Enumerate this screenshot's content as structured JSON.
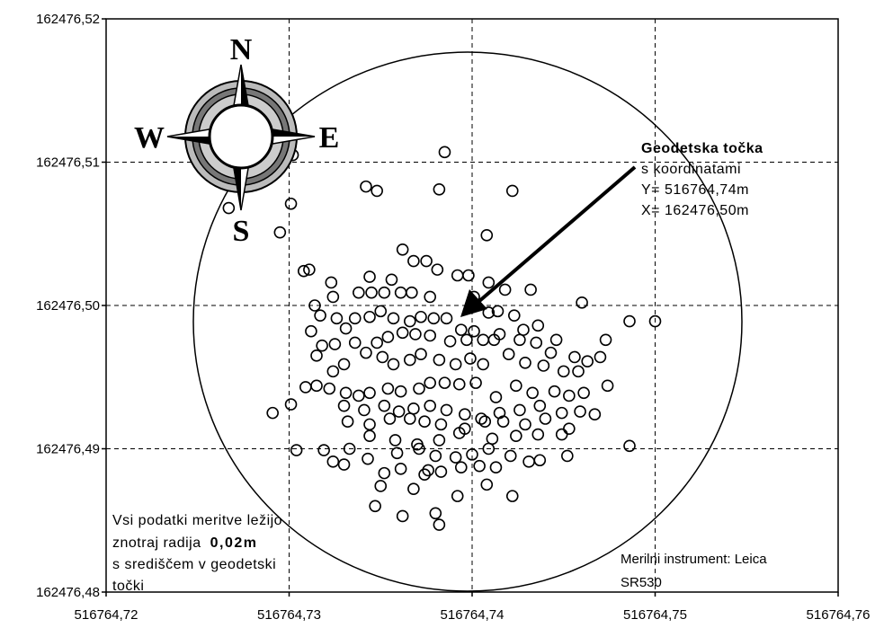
{
  "chart_data": {
    "type": "scatter",
    "x": [
      516764.7385,
      516764.7382,
      516764.7342,
      516764.7348,
      516764.7422,
      516764.7302,
      516764.7267,
      516764.7301,
      516764.7295,
      516764.7408,
      516764.7362,
      516764.7368,
      516764.7375,
      516764.7381,
      516764.7392,
      516764.7398,
      516764.7308,
      516764.7311,
      516764.7344,
      516764.7356,
      516764.7323,
      516764.7418,
      516764.7432,
      516764.7409,
      516764.7338,
      516764.7345,
      516764.7352,
      516764.7361,
      516764.7367,
      516764.7377,
      516764.7324,
      516764.7314,
      516764.7317,
      516764.7326,
      516764.7336,
      516764.7344,
      516764.735,
      516764.7401,
      516764.7409,
      516764.7414,
      516764.7423,
      516764.746,
      516764.7486,
      516764.7473,
      516764.7312,
      516764.7331,
      516764.7357,
      516764.7366,
      516764.7372,
      516764.7379,
      516764.7386,
      516764.7394,
      516764.7401,
      516764.7415,
      516764.7428,
      516764.7436,
      516764.7446,
      516764.7443,
      516764.7456,
      516764.747,
      516764.7318,
      516764.7325,
      516764.7336,
      516764.7348,
      516764.7354,
      516764.7362,
      516764.7369,
      516764.7377,
      516764.7388,
      516764.7397,
      516764.7406,
      516764.7412,
      516764.7426,
      516764.7435,
      516764.7315,
      516764.7324,
      516764.733,
      516764.7342,
      516764.7351,
      516764.7357,
      516764.7366,
      516764.7372,
      516764.7382,
      516764.7391,
      516764.7399,
      516764.7406,
      516764.742,
      516764.7429,
      516764.7439,
      516764.745,
      516764.7458,
      516764.7463,
      516764.7474,
      516764.7309,
      516764.7315,
      516764.7322,
      516764.7331,
      516764.7338,
      516764.7344,
      516764.7354,
      516764.7361,
      516764.7371,
      516764.7377,
      516764.7385,
      516764.7393,
      516764.7402,
      516764.7413,
      516764.7424,
      516764.7433,
      516764.7445,
      516764.7453,
      516764.7461,
      516764.7291,
      516764.7301,
      516764.733,
      516764.7341,
      516764.7352,
      516764.736,
      516764.7368,
      516764.7377,
      516764.7386,
      516764.7396,
      516764.7405,
      516764.7415,
      516764.7426,
      516764.7437,
      516764.7449,
      516764.7459,
      516764.7467,
      516764.7332,
      516764.7344,
      516764.7355,
      516764.7366,
      516764.7374,
      516764.7383,
      516764.7396,
      516764.7407,
      516764.7417,
      516764.7429,
      516764.744,
      516764.7453,
      516764.7333,
      516764.7344,
      516764.7358,
      516764.737,
      516764.7382,
      516764.7393,
      516764.7411,
      516764.7424,
      516764.7436,
      516764.7449,
      516764.7304,
      516764.7319,
      516764.7324,
      516764.733,
      516764.7343,
      516764.7359,
      516764.7371,
      516764.738,
      516764.7391,
      516764.74,
      516764.7409,
      516764.7421,
      516764.7431,
      516764.7437,
      516764.7452,
      516764.7486,
      516764.7352,
      516764.7361,
      516764.7376,
      516764.7383,
      516764.7394,
      516764.7404,
      516764.7413,
      516764.735,
      516764.7368,
      516764.7374,
      516764.7392,
      516764.7408,
      516764.7422,
      516764.7347,
      516764.7362,
      516764.738,
      516764.7382,
      516764.75
    ],
    "values": [
      162476.5107,
      162476.5081,
      162476.5083,
      162476.508,
      162476.508,
      162476.5105,
      162476.5068,
      162476.5071,
      162476.5051,
      162476.5049,
      162476.5039,
      162476.5031,
      162476.5031,
      162476.5025,
      162476.5021,
      162476.5021,
      162476.5024,
      162476.5025,
      162476.502,
      162476.5018,
      162476.5016,
      162476.5011,
      162476.5011,
      162476.5016,
      162476.5009,
      162476.5009,
      162476.5009,
      162476.5009,
      162476.5009,
      162476.5006,
      162476.5006,
      162476.5,
      162476.4993,
      162476.4991,
      162476.4991,
      162476.4992,
      162476.4996,
      162476.5006,
      162476.4995,
      162476.4996,
      162476.4993,
      162476.5002,
      162476.4989,
      162476.4976,
      162476.4982,
      162476.4984,
      162476.4991,
      162476.4989,
      162476.4992,
      162476.4991,
      162476.4991,
      162476.4983,
      162476.4982,
      162476.498,
      162476.4983,
      162476.4986,
      162476.4976,
      162476.4967,
      162476.4964,
      162476.4964,
      162476.4972,
      162476.4973,
      162476.4974,
      162476.4974,
      162476.4978,
      162476.4981,
      162476.498,
      162476.4979,
      162476.4975,
      162476.4976,
      162476.4976,
      162476.4976,
      162476.4976,
      162476.4974,
      162476.4965,
      162476.4954,
      162476.4959,
      162476.4967,
      162476.4964,
      162476.4959,
      162476.4962,
      162476.4966,
      162476.4962,
      162476.4959,
      162476.4963,
      162476.4959,
      162476.4966,
      162476.496,
      162476.4958,
      162476.4954,
      162476.4954,
      162476.4961,
      162476.4944,
      162476.4943,
      162476.4944,
      162476.4942,
      162476.4939,
      162476.4937,
      162476.4939,
      162476.4942,
      162476.494,
      162476.4942,
      162476.4946,
      162476.4946,
      162476.4945,
      162476.4946,
      162476.4936,
      162476.4944,
      162476.4939,
      162476.494,
      162476.4937,
      162476.4939,
      162476.4925,
      162476.4931,
      162476.493,
      162476.4927,
      162476.493,
      162476.4926,
      162476.4928,
      162476.493,
      162476.4927,
      162476.4924,
      162476.4921,
      162476.4925,
      162476.4927,
      162476.493,
      162476.4925,
      162476.4926,
      162476.4924,
      162476.4919,
      162476.4917,
      162476.4921,
      162476.4921,
      162476.4919,
      162476.4917,
      162476.4914,
      162476.4919,
      162476.4919,
      162476.4917,
      162476.4921,
      162476.4914,
      162476.49,
      162476.4909,
      162476.4906,
      162476.4903,
      162476.4906,
      162476.4911,
      162476.4907,
      162476.4909,
      162476.491,
      162476.491,
      162476.4899,
      162476.4899,
      162476.4891,
      162476.4889,
      162476.4893,
      162476.4897,
      162476.49,
      162476.4895,
      162476.4894,
      162476.4896,
      162476.49,
      162476.4895,
      162476.4891,
      162476.4892,
      162476.4895,
      162476.4902,
      162476.4883,
      162476.4886,
      162476.4885,
      162476.4884,
      162476.4887,
      162476.4888,
      162476.4887,
      162476.4874,
      162476.4872,
      162476.4882,
      162476.4867,
      162476.4875,
      162476.4867,
      162476.486,
      162476.4853,
      162476.4855,
      162476.4847,
      162476.4989
    ],
    "color": "#000000",
    "xlim": [
      516764.72,
      516764.76
    ],
    "ylim": [
      162476.48,
      162476.52
    ],
    "xticks": [
      {
        "value": 516764.72,
        "label": "516764,72"
      },
      {
        "value": 516764.73,
        "label": "516764,73"
      },
      {
        "value": 516764.74,
        "label": "516764,74"
      },
      {
        "value": 516764.75,
        "label": "516764,75"
      },
      {
        "value": 516764.76,
        "label": "516764,76"
      }
    ],
    "yticks": [
      {
        "value": 162476.48,
        "label": "162476,48"
      },
      {
        "value": 162476.49,
        "label": "162476,49"
      },
      {
        "value": 162476.5,
        "label": "162476,50"
      },
      {
        "value": 162476.51,
        "label": "162476,51"
      },
      {
        "value": 162476.52,
        "label": "162476,52"
      }
    ],
    "grid": true,
    "point_note": [
      "Geodetska točka",
      "s koordinatami",
      "Y= 516764,74m",
      "X= 162476,50m"
    ],
    "note": [
      "Vsi podatki meritve ležijo",
      "znotraj radija",
      "0,02m",
      "s središčem v geodetski",
      "točki"
    ],
    "instrument_note": [
      "Merilni instrument: Leica",
      "SR530"
    ],
    "compass": [
      "N",
      "W",
      "E",
      "S"
    ]
  }
}
